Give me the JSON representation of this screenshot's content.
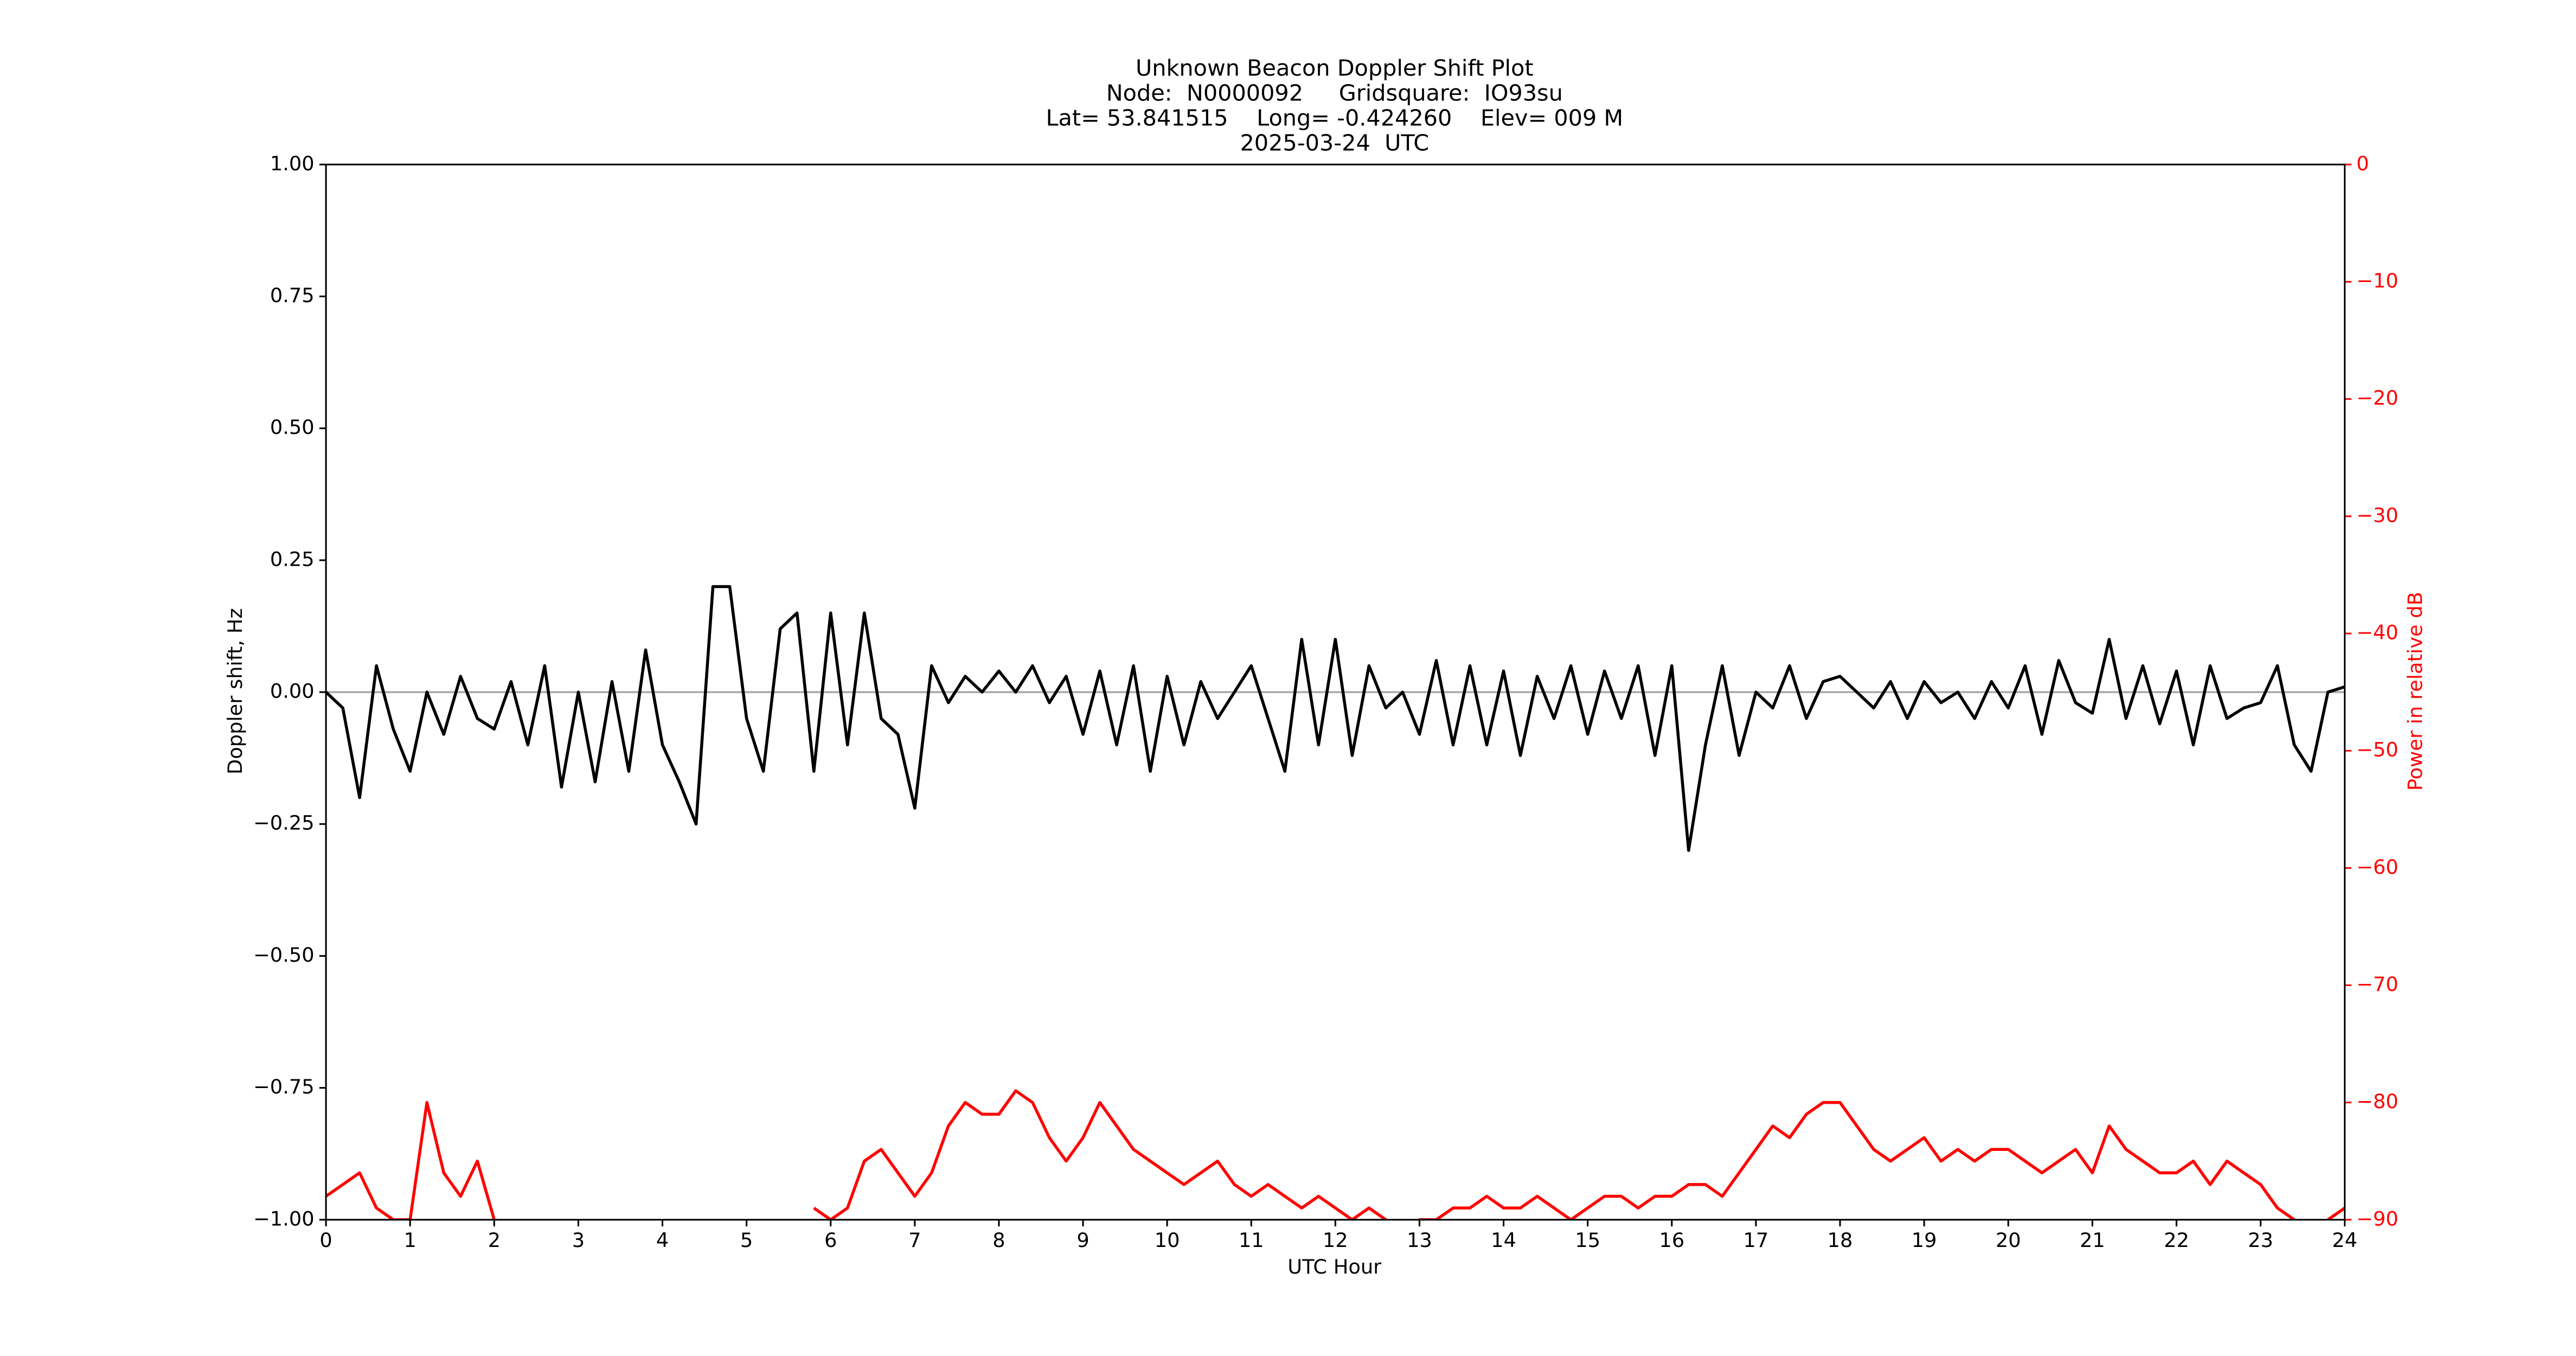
{
  "chart_data": {
    "type": "line",
    "title": "Unknown Beacon Doppler Shift Plot",
    "subtitle": [
      "Node:  N0000092     Gridsquare:  IO93su",
      "Lat= 53.841515    Long= -0.424260    Elev= 009 M",
      "2025-03-24  UTC"
    ],
    "xlabel": "UTC Hour",
    "ylabel": "Doppler shift, Hz",
    "y2label": "Power in relative dB",
    "x": [
      0,
      0.2,
      0.4,
      0.6,
      0.8,
      1,
      1.2,
      1.4,
      1.6,
      1.8,
      2,
      2.2,
      2.4,
      2.6,
      2.8,
      3,
      3.2,
      3.4,
      3.6,
      3.8,
      4,
      4.2,
      4.4,
      4.6,
      4.8,
      5,
      5.2,
      5.4,
      5.6,
      5.8,
      6,
      6.2,
      6.4,
      6.6,
      6.8,
      7,
      7.2,
      7.4,
      7.6,
      7.8,
      8,
      8.2,
      8.4,
      8.6,
      8.8,
      9,
      9.2,
      9.4,
      9.6,
      9.8,
      10,
      10.2,
      10.4,
      10.6,
      10.8,
      11,
      11.2,
      11.4,
      11.6,
      11.8,
      12,
      12.2,
      12.4,
      12.6,
      12.8,
      13,
      13.2,
      13.4,
      13.6,
      13.8,
      14,
      14.2,
      14.4,
      14.6,
      14.8,
      15,
      15.2,
      15.4,
      15.6,
      15.8,
      16,
      16.2,
      16.4,
      16.6,
      16.8,
      17,
      17.2,
      17.4,
      17.6,
      17.8,
      18,
      18.2,
      18.4,
      18.6,
      18.8,
      19,
      19.2,
      19.4,
      19.6,
      19.8,
      20,
      20.2,
      20.4,
      20.6,
      20.8,
      21,
      21.2,
      21.4,
      21.6,
      21.8,
      22,
      22.2,
      22.4,
      22.6,
      22.8,
      23,
      23.2,
      23.4,
      23.6,
      23.8,
      24
    ],
    "series": [
      {
        "name": "Doppler shift",
        "color": "#000000",
        "axis": "y",
        "values": [
          0.0,
          -0.03,
          -0.2,
          0.05,
          -0.07,
          -0.15,
          0.0,
          -0.08,
          0.03,
          -0.05,
          -0.07,
          0.02,
          -0.1,
          0.05,
          -0.18,
          0.0,
          -0.17,
          0.02,
          -0.15,
          0.08,
          -0.1,
          -0.17,
          -0.25,
          0.2,
          0.2,
          -0.05,
          -0.15,
          0.12,
          0.15,
          -0.15,
          0.15,
          -0.1,
          0.15,
          -0.05,
          -0.08,
          -0.22,
          0.05,
          -0.02,
          0.03,
          0.0,
          0.04,
          0.0,
          0.05,
          -0.02,
          0.03,
          -0.08,
          0.04,
          -0.1,
          0.05,
          -0.15,
          0.03,
          -0.1,
          0.02,
          -0.05,
          0.0,
          0.05,
          -0.05,
          -0.15,
          0.1,
          -0.1,
          0.1,
          -0.12,
          0.05,
          -0.03,
          0.0,
          -0.08,
          0.06,
          -0.1,
          0.05,
          -0.1,
          0.04,
          -0.12,
          0.03,
          -0.05,
          0.05,
          -0.08,
          0.04,
          -0.05,
          0.05,
          -0.12,
          0.05,
          -0.3,
          -0.1,
          0.05,
          -0.12,
          0.0,
          -0.03,
          0.05,
          -0.05,
          0.02,
          0.03,
          0.0,
          -0.03,
          0.02,
          -0.05,
          0.02,
          -0.02,
          0.0,
          -0.05,
          0.02,
          -0.03,
          0.05,
          -0.08,
          0.06,
          -0.02,
          -0.04,
          0.1,
          -0.05,
          0.05,
          -0.06,
          0.04,
          -0.1,
          0.05,
          -0.05,
          -0.03,
          -0.02,
          0.05,
          -0.1,
          -0.15,
          0.0,
          0.01
        ]
      },
      {
        "name": "Power",
        "color": "#ff0000",
        "axis": "y2",
        "values": [
          -88,
          -87,
          -86,
          -89,
          -90,
          -90,
          -80,
          -86,
          -88,
          -85,
          -90,
          null,
          null,
          null,
          null,
          null,
          null,
          null,
          null,
          null,
          null,
          null,
          null,
          null,
          null,
          null,
          null,
          null,
          null,
          -89,
          -90,
          -89,
          -85,
          -84,
          -86,
          -88,
          -86,
          -82,
          -80,
          -81,
          -81,
          -79,
          -80,
          -83,
          -85,
          -83,
          -80,
          -82,
          -84,
          -85,
          -86,
          -87,
          -86,
          -85,
          -87,
          -88,
          -87,
          -88,
          -89,
          -88,
          -89,
          -90,
          -89,
          -90,
          -91,
          -90,
          -90,
          -89,
          -89,
          -88,
          -89,
          -89,
          -88,
          -89,
          -90,
          -89,
          -88,
          -88,
          -89,
          -88,
          -88,
          -87,
          -87,
          -88,
          -86,
          -84,
          -82,
          -83,
          -81,
          -80,
          -80,
          -82,
          -84,
          -85,
          -84,
          -83,
          -85,
          -84,
          -85,
          -84,
          -84,
          -85,
          -86,
          -85,
          -84,
          -86,
          -82,
          -84,
          -85,
          -86,
          -86,
          -85,
          -87,
          -85,
          -86,
          -87,
          -89,
          -90,
          -91,
          -90,
          -89
        ]
      }
    ],
    "hline": 0,
    "hline_color": "#aaaaaa",
    "xlim": [
      0,
      24
    ],
    "xticks": [
      0,
      1,
      2,
      3,
      4,
      5,
      6,
      7,
      8,
      9,
      10,
      11,
      12,
      13,
      14,
      15,
      16,
      17,
      18,
      19,
      20,
      21,
      22,
      23,
      24
    ],
    "ylim": [
      -1,
      1
    ],
    "yticks": [
      {
        "value": -1,
        "label": "−1.00"
      },
      {
        "value": -0.75,
        "label": "−0.75"
      },
      {
        "value": -0.5,
        "label": "−0.50"
      },
      {
        "value": -0.25,
        "label": "−0.25"
      },
      {
        "value": 0,
        "label": "0.00"
      },
      {
        "value": 0.25,
        "label": "0.25"
      },
      {
        "value": 0.5,
        "label": "0.50"
      },
      {
        "value": 0.75,
        "label": "0.75"
      },
      {
        "value": 1,
        "label": "1.00"
      }
    ],
    "y2lim": [
      -90,
      0
    ],
    "y2ticks": [
      {
        "value": -90,
        "label": "−90"
      },
      {
        "value": -80,
        "label": "−80"
      },
      {
        "value": -70,
        "label": "−70"
      },
      {
        "value": -60,
        "label": "−60"
      },
      {
        "value": -50,
        "label": "−50"
      },
      {
        "value": -40,
        "label": "−40"
      },
      {
        "value": -30,
        "label": "−30"
      },
      {
        "value": -20,
        "label": "−20"
      },
      {
        "value": -10,
        "label": "−10"
      },
      0
    ],
    "y2color": "#ff0000"
  }
}
